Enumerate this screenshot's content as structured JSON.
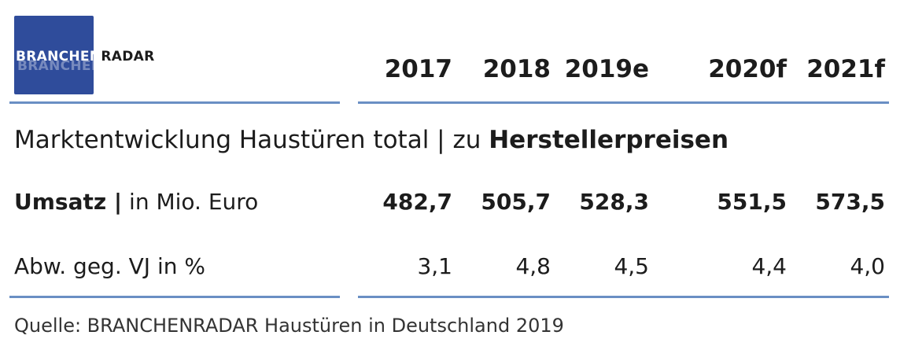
{
  "logo": {
    "part1": "BRANCHEN",
    "part2": "RADAR"
  },
  "colors": {
    "logo_bg": "#2f4c9b",
    "rule": "#6a8fc4",
    "text": "#1c1c1c"
  },
  "chart_data": {
    "type": "table",
    "columns": [
      "2017",
      "2018",
      "2019e",
      "2020f",
      "2021f"
    ],
    "heading_normal": "Marktentwicklung Haustüren total | zu ",
    "heading_bold": "Herstellerpreisen",
    "rows": [
      {
        "label_bold": "Umsatz |",
        "label_normal": " in Mio. Euro",
        "values": [
          "482,7",
          "505,7",
          "528,3",
          "551,5",
          "573,5"
        ]
      },
      {
        "label_bold": "",
        "label_normal": "Abw. geg. VJ in %",
        "values": [
          "3,1",
          "4,8",
          "4,5",
          "4,4",
          "4,0"
        ]
      }
    ],
    "source": "Quelle: BRANCHENRADAR Haustüren in Deutschland 2019"
  }
}
